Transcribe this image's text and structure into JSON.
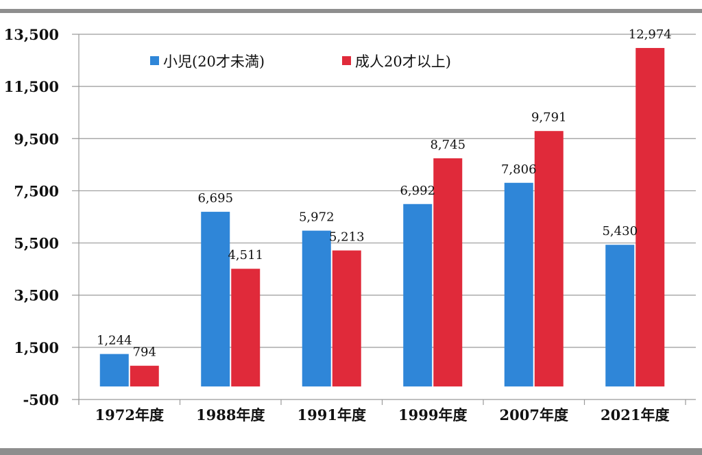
{
  "chart_data": {
    "type": "bar",
    "title": "",
    "xlabel": "",
    "ylabel": "",
    "categories": [
      "1972年度",
      "1988年度",
      "1991年度",
      "1999年度",
      "2007年度",
      "2021年度"
    ],
    "series": [
      {
        "name": "小児(20才未満)",
        "color": "#2f86d8",
        "values": [
          1244,
          6695,
          5972,
          6992,
          7806,
          5430
        ],
        "labels": [
          "1,244",
          "6,695",
          "5,972",
          "6,992",
          "7,806",
          "5,430"
        ]
      },
      {
        "name": "成人20才以上)",
        "color": "#e02a3a",
        "values": [
          794,
          4511,
          5213,
          8745,
          9791,
          12974
        ],
        "labels": [
          "794",
          "4,511",
          "5,213",
          "8,745",
          "9,791",
          "12,974"
        ]
      }
    ],
    "ylim": [
      -500,
      13500
    ],
    "yticks": [
      13500,
      11500,
      9500,
      7500,
      5500,
      3500,
      1500,
      -500
    ],
    "ytick_labels": [
      "13,500",
      "11,500",
      "9,500",
      "7,500",
      "5,500",
      "3,500",
      "1,500",
      "-500"
    ],
    "grid": true,
    "legend_position": "top-left"
  }
}
